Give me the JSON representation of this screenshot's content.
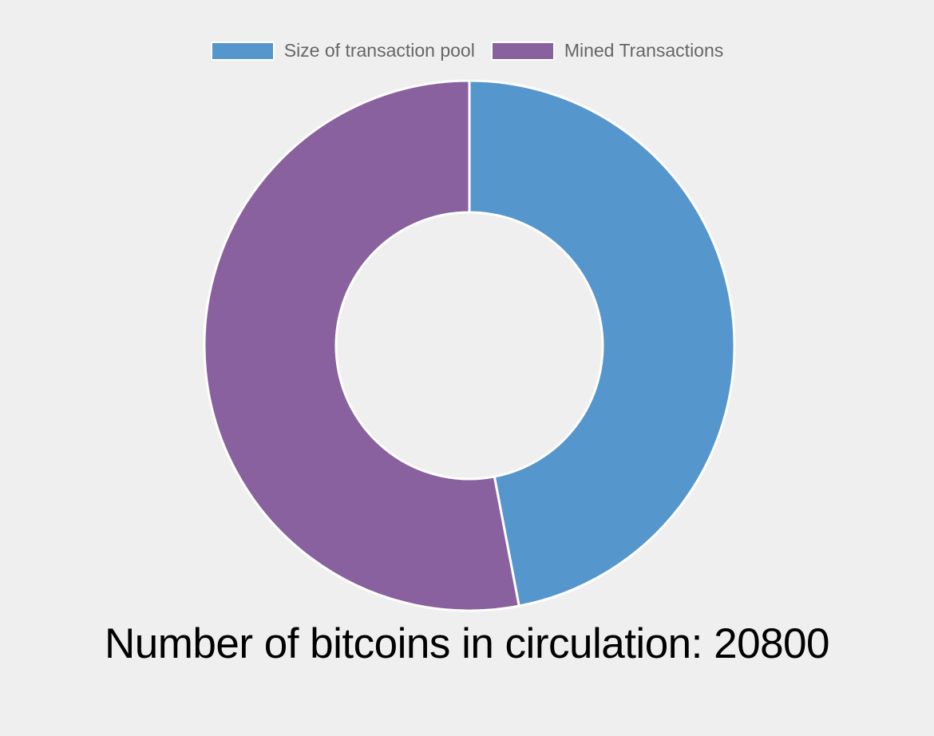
{
  "chart_data": {
    "type": "pie",
    "variant": "doughnut",
    "categories": [
      "Size of transaction pool",
      "Mined Transactions"
    ],
    "values": [
      47,
      53
    ],
    "colors": [
      "#5596cc",
      "#88619e"
    ],
    "legend_position": "top",
    "grid": false
  },
  "caption": "Number of bitcoins in circulation: 20800"
}
